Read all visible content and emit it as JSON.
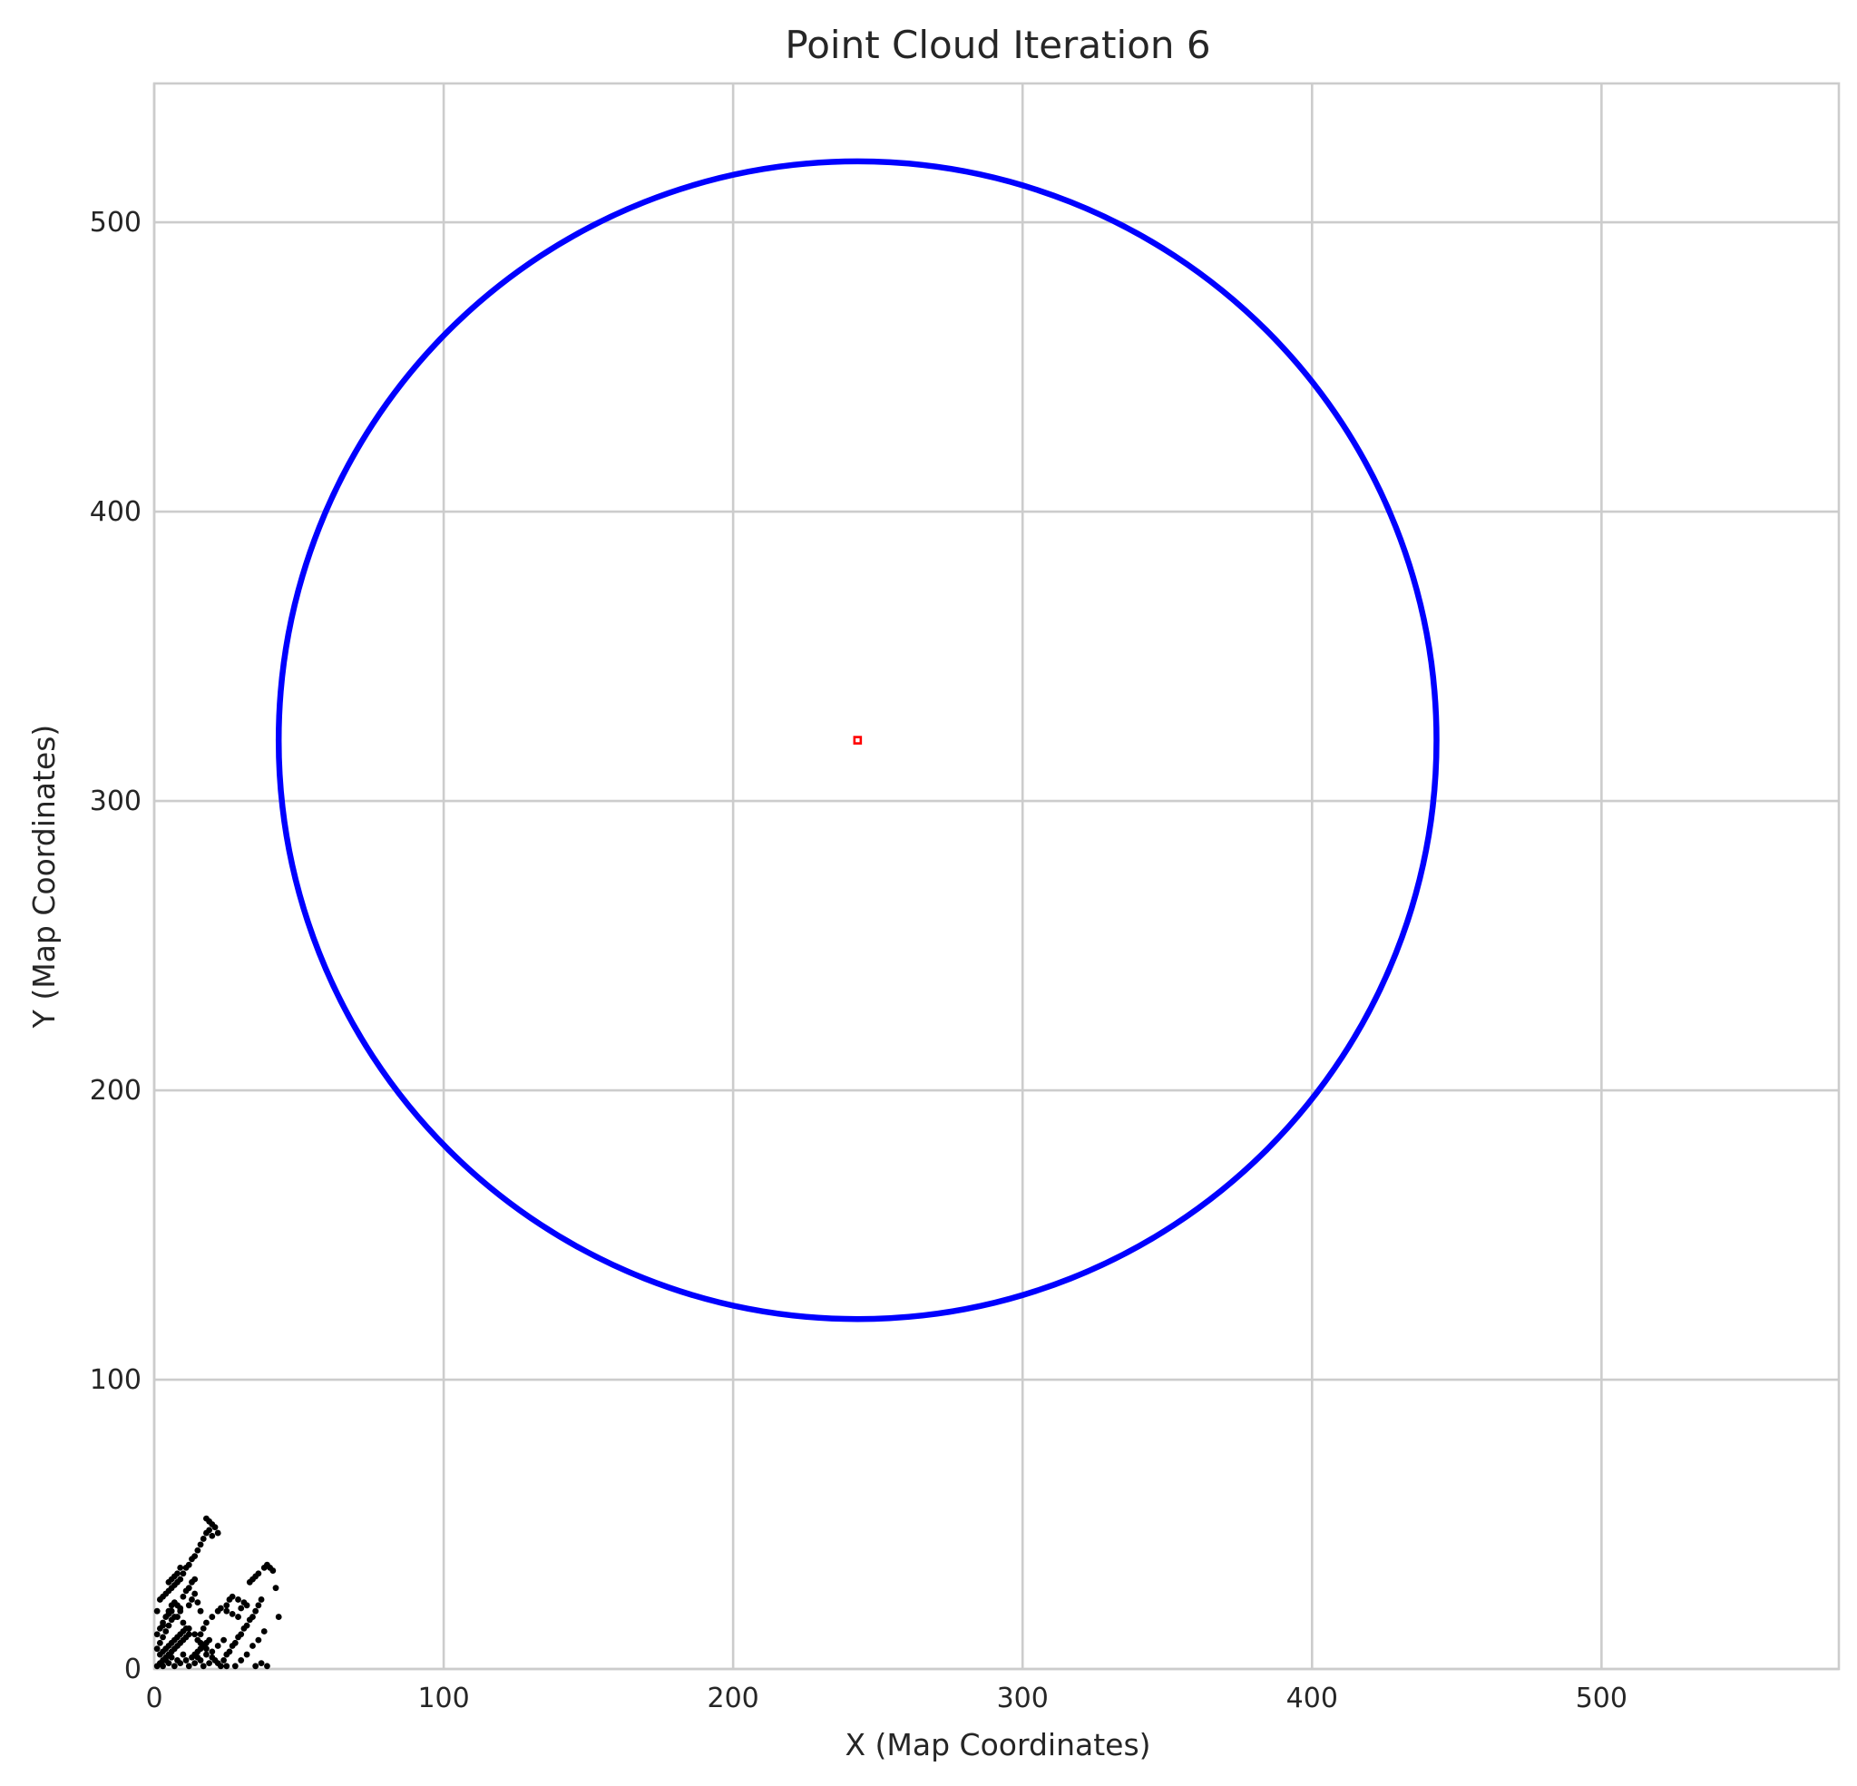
{
  "chart_data": {
    "type": "scatter",
    "title": "Point Cloud Iteration 6",
    "xlabel": "X (Map Coordinates)",
    "ylabel": "Y (Map Coordinates)",
    "xlim": [
      0,
      582
    ],
    "ylim": [
      0,
      548
    ],
    "xticks": [
      0,
      100,
      200,
      300,
      400,
      500
    ],
    "yticks": [
      0,
      100,
      200,
      300,
      400,
      500
    ],
    "grid": true,
    "colors": {
      "points": "#000000",
      "circle": "#0000ff",
      "center": "#ff0000",
      "grid": "#cccccc"
    },
    "circle": {
      "center": [
        243,
        321
      ],
      "radius": 200
    },
    "center_point": [
      243,
      321
    ],
    "points": [
      [
        1,
        1
      ],
      [
        2,
        2
      ],
      [
        3,
        1
      ],
      [
        4,
        3
      ],
      [
        5,
        2
      ],
      [
        6,
        4
      ],
      [
        7,
        1
      ],
      [
        8,
        3
      ],
      [
        9,
        2
      ],
      [
        10,
        5
      ],
      [
        11,
        3
      ],
      [
        12,
        1
      ],
      [
        13,
        4
      ],
      [
        14,
        2
      ],
      [
        15,
        6
      ],
      [
        16,
        3
      ],
      [
        17,
        1
      ],
      [
        18,
        5
      ],
      [
        19,
        2
      ],
      [
        20,
        4
      ],
      [
        2,
        5
      ],
      [
        3,
        6
      ],
      [
        4,
        7
      ],
      [
        5,
        8
      ],
      [
        6,
        9
      ],
      [
        7,
        10
      ],
      [
        8,
        11
      ],
      [
        9,
        12
      ],
      [
        10,
        13
      ],
      [
        11,
        14
      ],
      [
        1,
        7
      ],
      [
        2,
        9
      ],
      [
        3,
        11
      ],
      [
        4,
        13
      ],
      [
        5,
        15
      ],
      [
        6,
        17
      ],
      [
        7,
        18
      ],
      [
        3,
        15
      ],
      [
        5,
        19
      ],
      [
        6,
        20
      ],
      [
        2,
        24
      ],
      [
        3,
        25
      ],
      [
        4,
        26
      ],
      [
        5,
        27
      ],
      [
        6,
        28
      ],
      [
        7,
        29
      ],
      [
        8,
        30
      ],
      [
        9,
        31
      ],
      [
        10,
        33
      ],
      [
        11,
        35
      ],
      [
        12,
        36
      ],
      [
        13,
        38
      ],
      [
        14,
        39
      ],
      [
        15,
        41
      ],
      [
        16,
        43
      ],
      [
        17,
        45
      ],
      [
        18,
        47
      ],
      [
        19,
        48
      ],
      [
        20,
        50
      ],
      [
        21,
        49
      ],
      [
        22,
        47
      ],
      [
        20,
        46
      ],
      [
        18,
        52
      ],
      [
        19,
        51
      ],
      [
        10,
        25
      ],
      [
        11,
        27
      ],
      [
        12,
        28
      ],
      [
        13,
        30
      ],
      [
        14,
        31
      ],
      [
        15,
        10
      ],
      [
        16,
        12
      ],
      [
        17,
        14
      ],
      [
        18,
        16
      ],
      [
        20,
        18
      ],
      [
        22,
        20
      ],
      [
        23,
        21
      ],
      [
        25,
        22
      ],
      [
        26,
        24
      ],
      [
        27,
        25
      ],
      [
        24,
        3
      ],
      [
        25,
        5
      ],
      [
        26,
        6
      ],
      [
        27,
        8
      ],
      [
        28,
        9
      ],
      [
        29,
        11
      ],
      [
        30,
        12
      ],
      [
        31,
        14
      ],
      [
        32,
        15
      ],
      [
        33,
        17
      ],
      [
        34,
        18
      ],
      [
        35,
        20
      ],
      [
        36,
        22
      ],
      [
        37,
        24
      ],
      [
        28,
        1
      ],
      [
        30,
        3
      ],
      [
        32,
        5
      ],
      [
        34,
        8
      ],
      [
        36,
        10
      ],
      [
        38,
        13
      ],
      [
        33,
        30
      ],
      [
        34,
        31
      ],
      [
        35,
        32
      ],
      [
        36,
        33
      ],
      [
        38,
        35
      ],
      [
        39,
        36
      ],
      [
        40,
        35
      ],
      [
        41,
        34
      ],
      [
        42,
        28
      ],
      [
        43,
        18
      ],
      [
        8,
        18
      ],
      [
        9,
        20
      ],
      [
        10,
        16
      ],
      [
        12,
        14
      ],
      [
        14,
        12
      ],
      [
        16,
        9
      ],
      [
        18,
        7
      ],
      [
        20,
        6
      ],
      [
        22,
        8
      ],
      [
        24,
        10
      ],
      [
        3,
        3
      ],
      [
        4,
        4
      ],
      [
        5,
        5
      ],
      [
        6,
        6
      ],
      [
        7,
        7
      ],
      [
        8,
        8
      ],
      [
        9,
        9
      ],
      [
        10,
        10
      ],
      [
        11,
        11
      ],
      [
        12,
        12
      ],
      [
        1,
        12
      ],
      [
        2,
        14
      ],
      [
        3,
        16
      ],
      [
        4,
        18
      ],
      [
        5,
        20
      ],
      [
        6,
        22
      ],
      [
        7,
        23
      ],
      [
        8,
        22
      ],
      [
        9,
        21
      ],
      [
        1,
        20
      ],
      [
        14,
        5
      ],
      [
        15,
        4
      ],
      [
        16,
        7
      ],
      [
        17,
        8
      ],
      [
        18,
        9
      ],
      [
        19,
        10
      ],
      [
        21,
        3
      ],
      [
        22,
        2
      ],
      [
        23,
        1
      ],
      [
        25,
        1
      ],
      [
        35,
        1
      ],
      [
        37,
        2
      ],
      [
        39,
        1
      ],
      [
        5,
        30
      ],
      [
        6,
        31
      ],
      [
        7,
        32
      ],
      [
        8,
        33
      ],
      [
        9,
        35
      ],
      [
        25,
        20
      ],
      [
        27,
        19
      ],
      [
        29,
        18
      ],
      [
        30,
        21
      ],
      [
        31,
        23
      ],
      [
        32,
        22
      ],
      [
        29,
        24
      ],
      [
        12,
        22
      ],
      [
        13,
        24
      ],
      [
        14,
        26
      ],
      [
        15,
        23
      ],
      [
        16,
        20
      ]
    ]
  }
}
